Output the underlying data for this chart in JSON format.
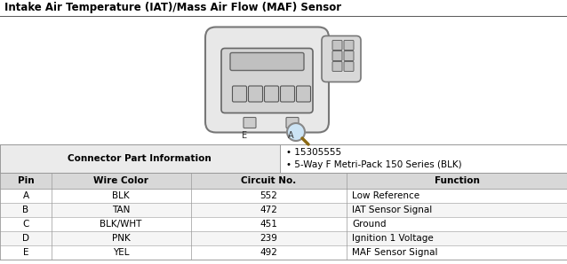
{
  "title": "Intake Air Temperature (IAT)/Mass Air Flow (MAF) Sensor",
  "title_fontsize": 8.5,
  "connector_label": "Connector Part Information",
  "part_info": [
    "15305555",
    "5-Way F Metri-Pack 150 Series (BLK)"
  ],
  "table_headers": [
    "Pin",
    "Wire Color",
    "Circuit No.",
    "Function"
  ],
  "table_rows": [
    [
      "A",
      "BLK",
      "552",
      "Low Reference"
    ],
    [
      "B",
      "TAN",
      "472",
      "IAT Sensor Signal"
    ],
    [
      "C",
      "BLK/WHT",
      "451",
      "Ground"
    ],
    [
      "D",
      "PNK",
      "239",
      "Ignition 1 Voltage"
    ],
    [
      "E",
      "YEL",
      "492",
      "MAF Sensor Signal"
    ]
  ],
  "bg_color": "#ffffff",
  "header_row_color": "#d8d8d8",
  "row_bg_even": "#ffffff",
  "row_bg_odd": "#f5f5f5",
  "border_color": "#999999",
  "text_color": "#000000",
  "connector_bg": "#ebebeb",
  "top_section_bg": "#ffffff",
  "title_line_color": "#555555"
}
